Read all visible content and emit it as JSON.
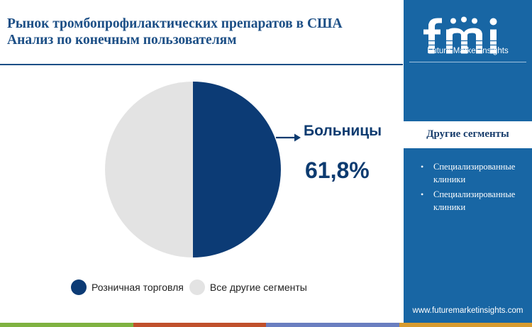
{
  "header": {
    "title_line1": "Рынок тромбопрофилактических препаратов в США",
    "title_line2": "Анализ по конечным пользователям"
  },
  "chart_data": {
    "type": "pie",
    "slices": [
      {
        "label": "Розничная торговля",
        "value": 50,
        "color": "#0c3b75"
      },
      {
        "label": "Все другие сегменты",
        "value": 50,
        "color": "#e3e3e3"
      }
    ],
    "callout": {
      "label": "Больницы",
      "value": "61,8%"
    },
    "legend_position": "bottom"
  },
  "sidebar": {
    "brand": "fmi",
    "tagline": "Future Market Insights",
    "other_segments_title": "Другие сегменты",
    "other_segments": [
      "Специализированные клиники",
      "Специализированные клиники"
    ],
    "website": "www.futuremarketinsights.com"
  },
  "colors": {
    "brand_blue": "#1866a4",
    "title_blue": "#1c4f86",
    "dark_navy": "#0c3b75",
    "bottom_bar": [
      "#7fb241",
      "#c0502c",
      "#6a7ec0",
      "#d79b2f"
    ]
  }
}
